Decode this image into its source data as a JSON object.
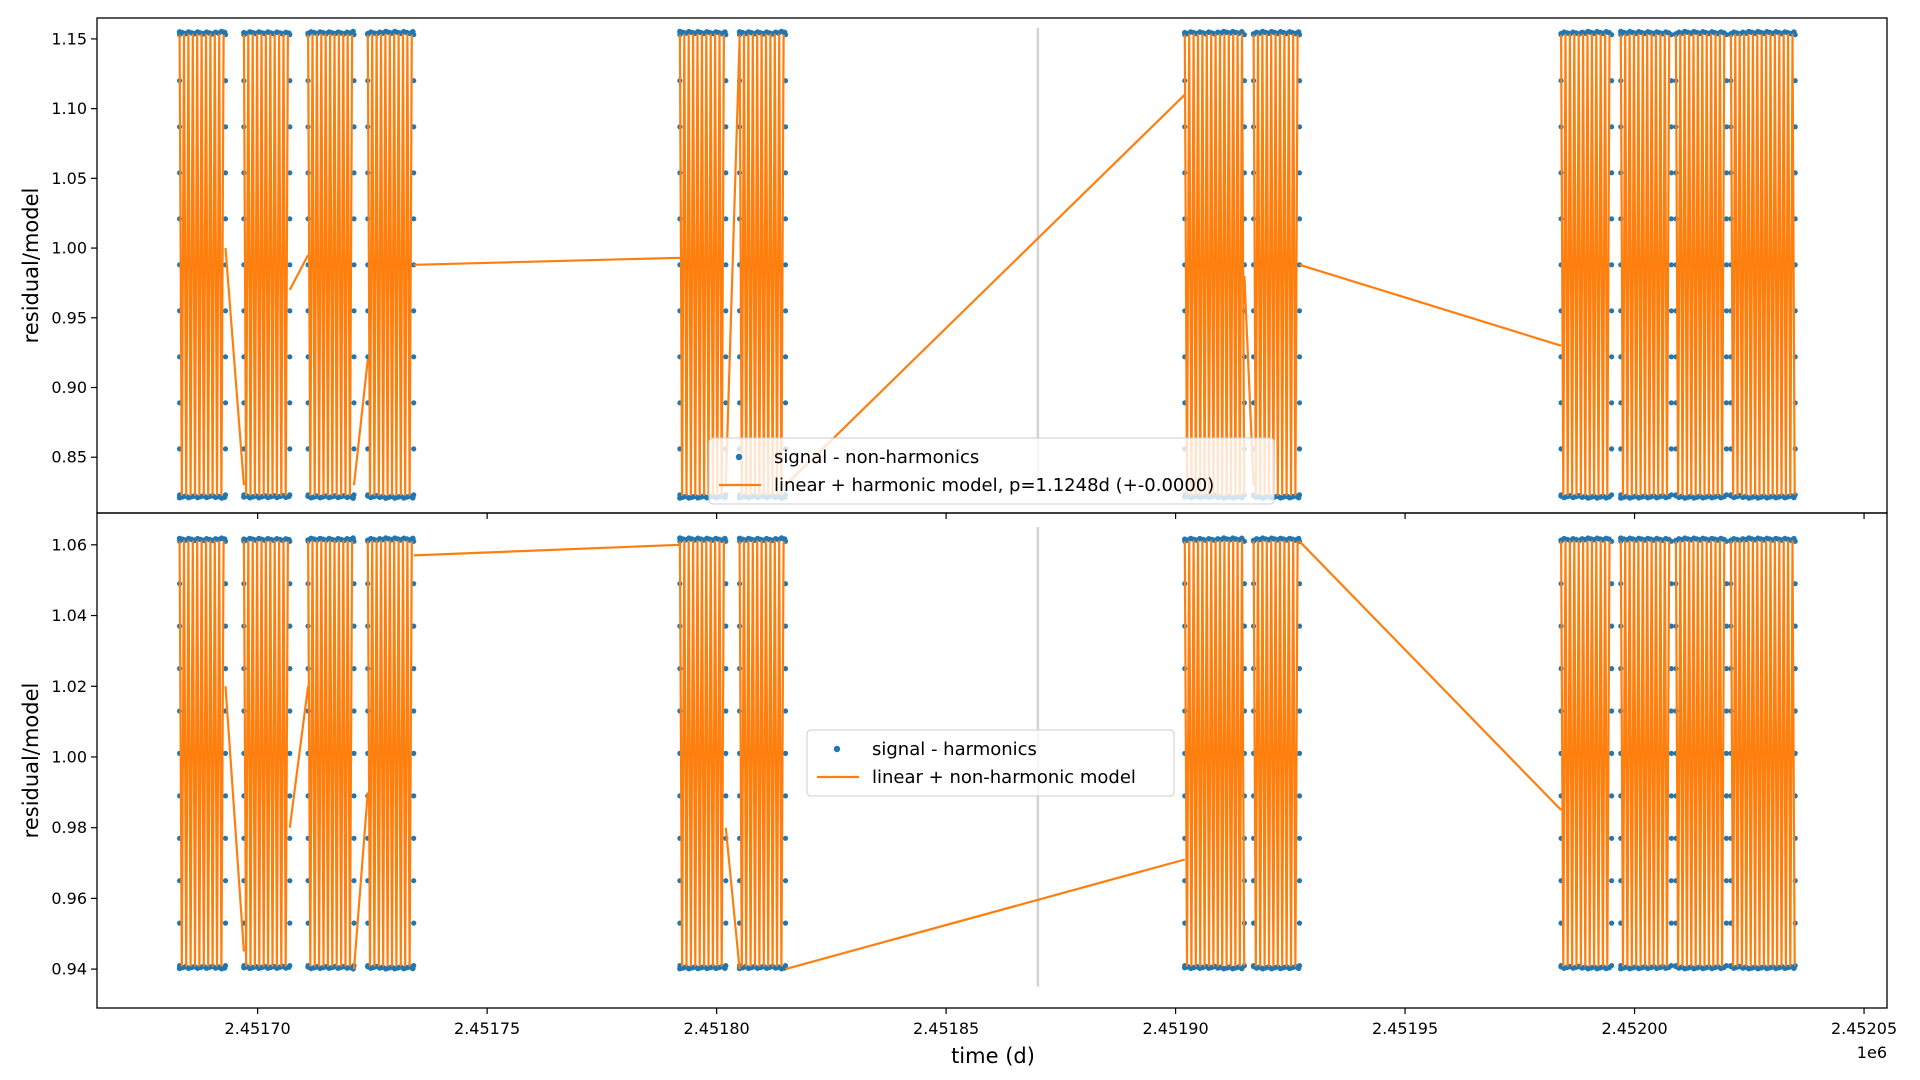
{
  "figure": {
    "xlabel": "time (d)",
    "x_offset_label": "1e6",
    "colors": {
      "points": "#1f77b4",
      "model": "#ff7f0e",
      "vline": "#d3d3d3",
      "axes": "#000000"
    }
  },
  "chart_data": [
    {
      "type": "scatter",
      "panel": "top",
      "ylabel": "residual/model",
      "xlim": [
        2.451665,
        2.452055
      ],
      "ylim": [
        0.81,
        1.165
      ],
      "x_ticks": [
        2.4517,
        2.45175,
        2.4518,
        2.45185,
        2.4519,
        2.45195,
        2.452,
        2.45205
      ],
      "x_tick_labels": [
        "2.45170",
        "2.45175",
        "2.45180",
        "2.45185",
        "2.45190",
        "2.45195",
        "2.45200",
        "2.45205"
      ],
      "y_ticks": [
        0.85,
        0.9,
        0.95,
        1.0,
        1.05,
        1.1,
        1.15
      ],
      "y_tick_labels": [
        "0.85",
        "0.90",
        "0.95",
        "1.00",
        "1.05",
        "1.10",
        "1.15"
      ],
      "y_low": 0.823,
      "y_high": 1.153,
      "vline_x": 2.45187,
      "vline_range": [
        0.822,
        1.158
      ],
      "segments": [
        [
          2.451683,
          2.451693
        ],
        [
          2.451697,
          2.451707
        ],
        [
          2.451711,
          2.451721
        ],
        [
          2.451724,
          2.451734
        ],
        [
          2.451792,
          2.451802
        ],
        [
          2.451805,
          2.451815
        ],
        [
          2.451902,
          2.451915
        ],
        [
          2.451917,
          2.451927
        ],
        [
          2.451984,
          2.451995
        ],
        [
          2.451997,
          2.452008
        ],
        [
          2.452009,
          2.45202
        ],
        [
          2.452021,
          2.452035
        ]
      ],
      "connectors": [
        [
          [
            2.451693,
            1.0
          ],
          [
            2.451697,
            0.83
          ]
        ],
        [
          [
            2.451707,
            0.97
          ],
          [
            2.451711,
            0.995
          ]
        ],
        [
          [
            2.451721,
            0.83
          ],
          [
            2.451724,
            0.92
          ]
        ],
        [
          [
            2.451734,
            0.988
          ],
          [
            2.451792,
            0.993
          ]
        ],
        [
          [
            2.451802,
            0.83
          ],
          [
            2.451805,
            1.15
          ]
        ],
        [
          [
            2.451815,
            0.83
          ],
          [
            2.451902,
            1.11
          ]
        ],
        [
          [
            2.451915,
            0.98
          ],
          [
            2.451917,
            0.83
          ]
        ],
        [
          [
            2.451927,
            0.988
          ],
          [
            2.451984,
            0.93
          ]
        ]
      ],
      "legend": {
        "placement": "lower center",
        "entries": [
          {
            "marker": "point",
            "label": "signal - non-harmonics"
          },
          {
            "marker": "line",
            "label": "linear + harmonic model, p=1.1248d (+-0.0000)"
          }
        ]
      }
    },
    {
      "type": "scatter",
      "panel": "bottom",
      "ylabel": "residual/model",
      "xlim": [
        2.451665,
        2.452055
      ],
      "ylim": [
        0.929,
        1.069
      ],
      "x_ticks": [
        2.4517,
        2.45175,
        2.4518,
        2.45185,
        2.4519,
        2.45195,
        2.452,
        2.45205
      ],
      "x_tick_labels": [
        "2.45170",
        "2.45175",
        "2.45180",
        "2.45185",
        "2.45190",
        "2.45195",
        "2.45200",
        "2.45205"
      ],
      "y_ticks": [
        0.94,
        0.96,
        0.98,
        1.0,
        1.02,
        1.04,
        1.06
      ],
      "y_tick_labels": [
        "0.94",
        "0.96",
        "0.98",
        "1.00",
        "1.02",
        "1.04",
        "1.06"
      ],
      "y_low": 0.941,
      "y_high": 1.061,
      "vline_x": 2.45187,
      "vline_range": [
        0.935,
        1.065
      ],
      "segments": [
        [
          2.451683,
          2.451693
        ],
        [
          2.451697,
          2.451707
        ],
        [
          2.451711,
          2.451721
        ],
        [
          2.451724,
          2.451734
        ],
        [
          2.451792,
          2.451802
        ],
        [
          2.451805,
          2.451815
        ],
        [
          2.451902,
          2.451915
        ],
        [
          2.451917,
          2.451927
        ],
        [
          2.451984,
          2.451995
        ],
        [
          2.451997,
          2.452008
        ],
        [
          2.452009,
          2.45202
        ],
        [
          2.452021,
          2.452035
        ]
      ],
      "connectors": [
        [
          [
            2.451693,
            1.02
          ],
          [
            2.451697,
            0.945
          ]
        ],
        [
          [
            2.451707,
            0.98
          ],
          [
            2.451711,
            1.02
          ]
        ],
        [
          [
            2.451721,
            0.94
          ],
          [
            2.451724,
            0.99
          ]
        ],
        [
          [
            2.451734,
            1.057
          ],
          [
            2.451792,
            1.06
          ]
        ],
        [
          [
            2.451802,
            0.98
          ],
          [
            2.451805,
            0.94
          ]
        ],
        [
          [
            2.451815,
            0.94
          ],
          [
            2.451902,
            0.971
          ]
        ],
        [
          [
            2.451927,
            1.061
          ],
          [
            2.451984,
            0.985
          ]
        ]
      ],
      "legend": {
        "placement": "center",
        "entries": [
          {
            "marker": "point",
            "label": "signal - harmonics"
          },
          {
            "marker": "line",
            "label": "linear + non-harmonic model"
          }
        ]
      }
    }
  ]
}
